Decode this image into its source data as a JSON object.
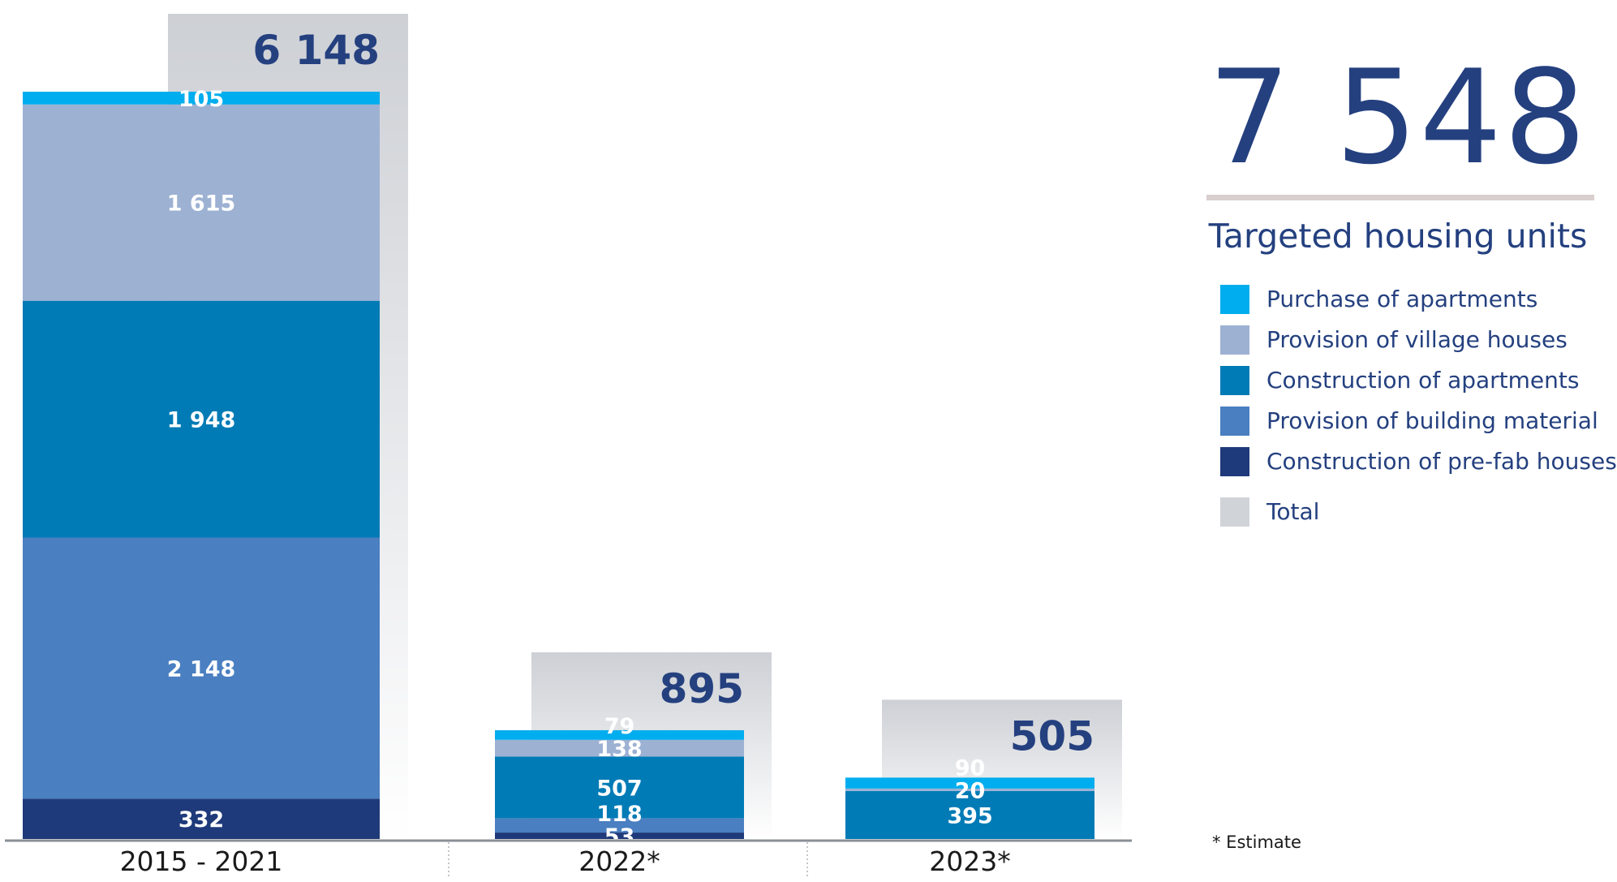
{
  "chart_data": {
    "type": "bar",
    "stacked": true,
    "categories": [
      "2015 - 2021",
      "2022*",
      "2023*"
    ],
    "series": [
      {
        "name": "Construction of pre-fab houses",
        "color": "#1f3a7a",
        "values": [
          332,
          53,
          0
        ],
        "labels": [
          "332",
          "53",
          ""
        ]
      },
      {
        "name": "Provision of building material",
        "color": "#4a7fc1",
        "values": [
          2148,
          118,
          0
        ],
        "labels": [
          "2 148",
          "118",
          ""
        ]
      },
      {
        "name": "Construction of apartments",
        "color": "#007bb6",
        "values": [
          1948,
          507,
          395
        ],
        "labels": [
          "1 948",
          "507",
          "395"
        ]
      },
      {
        "name": "Provision of village houses",
        "color": "#9db1d3",
        "values": [
          1615,
          138,
          20
        ],
        "labels": [
          "1 615",
          "138",
          "20"
        ]
      },
      {
        "name": "Purchase of apartments",
        "color": "#00adee",
        "values": [
          105,
          79,
          90
        ],
        "labels": [
          "105",
          "79",
          "90"
        ]
      }
    ],
    "totals": {
      "name": "Total",
      "color": "#d0d3d8",
      "values": [
        6148,
        895,
        505
      ],
      "labels": [
        "6 148",
        "895",
        "505"
      ]
    },
    "grand_total": "7 548",
    "title": "Targeted housing units",
    "footnote": "* Estimate",
    "ylim": [
      0,
      6300
    ],
    "grid": false,
    "legend_position": "right"
  },
  "legend": [
    {
      "label": "Purchase of apartments",
      "color": "#00adee"
    },
    {
      "label": "Provision of village houses",
      "color": "#9db1d3"
    },
    {
      "label": "Construction of apartments",
      "color": "#007bb6"
    },
    {
      "label": "Provision of building material",
      "color": "#4a7fc1"
    },
    {
      "label": "Construction of pre-fab houses",
      "color": "#1f3a7a"
    },
    {
      "label": "Total",
      "color": "#d0d3d8"
    }
  ]
}
